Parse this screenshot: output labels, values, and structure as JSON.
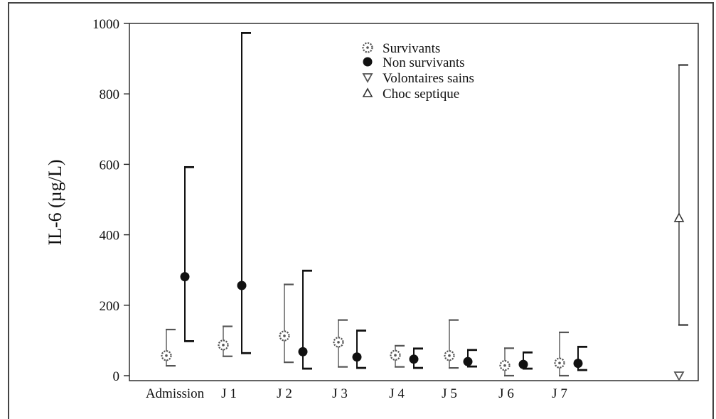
{
  "chart_data": {
    "type": "scatter",
    "title": "",
    "xlabel": "",
    "ylabel": "IL-6 (µg/L)",
    "ylim": [
      0,
      1000
    ],
    "yticks": [
      0,
      200,
      400,
      600,
      800,
      1000
    ],
    "categories": [
      "Admission",
      "J 1",
      "J 2",
      "J 3",
      "J 4",
      "J 5",
      "J 6",
      "J 7"
    ],
    "legend_position": "top-center",
    "grid": false,
    "series": [
      {
        "name": "Survivants",
        "marker": "dotted-circle",
        "color": "#555555",
        "points": [
          {
            "category": "Admission",
            "value": 57,
            "low": 28,
            "high": 131
          },
          {
            "category": "J 1",
            "value": 87,
            "low": 55,
            "high": 140
          },
          {
            "category": "J 2",
            "value": 113,
            "low": 38,
            "high": 259
          },
          {
            "category": "J 3",
            "value": 95,
            "low": 25,
            "high": 158
          },
          {
            "category": "J 4",
            "value": 58,
            "low": 25,
            "high": 85
          },
          {
            "category": "J 5",
            "value": 57,
            "low": 22,
            "high": 158
          },
          {
            "category": "J 6",
            "value": 29,
            "low": 0,
            "high": 78
          },
          {
            "category": "J 7",
            "value": 36,
            "low": 0,
            "high": 123
          }
        ]
      },
      {
        "name": "Non survivants",
        "marker": "filled-circle",
        "color": "#111111",
        "points": [
          {
            "category": "Admission",
            "value": 281,
            "low": 98,
            "high": 592
          },
          {
            "category": "J 1",
            "value": 256,
            "low": 64,
            "high": 973
          },
          {
            "category": "J 2",
            "value": 68,
            "low": 20,
            "high": 298
          },
          {
            "category": "J 3",
            "value": 53,
            "low": 22,
            "high": 128
          },
          {
            "category": "J 4",
            "value": 47,
            "low": 22,
            "high": 77
          },
          {
            "category": "J 5",
            "value": 40,
            "low": 26,
            "high": 73
          },
          {
            "category": "J 6",
            "value": 32,
            "low": 20,
            "high": 66
          },
          {
            "category": "J 7",
            "value": 35,
            "low": 16,
            "high": 82
          }
        ]
      },
      {
        "name": "Volontaires sains",
        "marker": "down-triangle",
        "color": "#555555",
        "points": [
          {
            "category": "",
            "value": 0
          }
        ]
      },
      {
        "name": "Choc septique",
        "marker": "up-triangle",
        "color": "#333333",
        "points": [
          {
            "category": "",
            "value": 448,
            "low": 144,
            "high": 882
          }
        ]
      }
    ]
  }
}
